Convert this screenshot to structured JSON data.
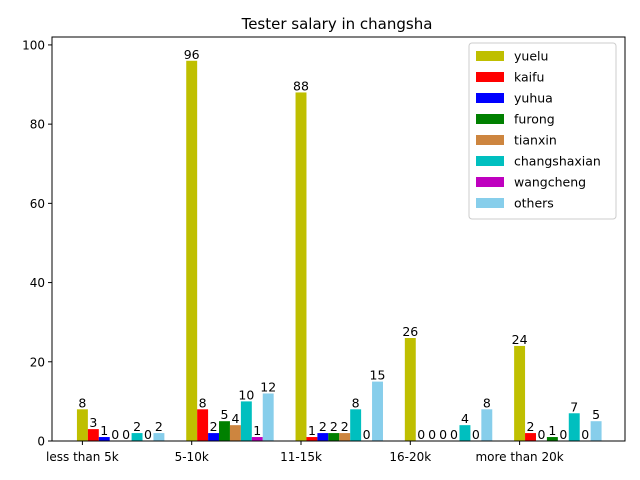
{
  "chart_data": {
    "type": "bar",
    "title": "Tester salary in changsha",
    "xlabel": "",
    "ylabel": "",
    "categories": [
      "less than 5k",
      "5-10k",
      "11-15k",
      "16-20k",
      "more than 20k"
    ],
    "ylim": [
      0,
      102
    ],
    "yticks": [
      0,
      20,
      40,
      60,
      80,
      100
    ],
    "grid": false,
    "legend_position": "top-right",
    "series": [
      {
        "name": "yuelu",
        "color": "#bfbf00",
        "values": [
          8,
          96,
          88,
          26,
          24
        ]
      },
      {
        "name": "kaifu",
        "color": "#ff0000",
        "values": [
          3,
          8,
          1,
          0,
          2
        ]
      },
      {
        "name": "yuhua",
        "color": "#0000ff",
        "values": [
          1,
          2,
          2,
          0,
          0
        ]
      },
      {
        "name": "furong",
        "color": "#008000",
        "values": [
          0,
          5,
          2,
          0,
          1
        ]
      },
      {
        "name": "tianxin",
        "color": "#cd853f",
        "values": [
          0,
          4,
          2,
          0,
          0
        ]
      },
      {
        "name": "changshaxian",
        "color": "#00bfbf",
        "values": [
          2,
          10,
          8,
          4,
          7
        ]
      },
      {
        "name": "wangcheng",
        "color": "#bf00bf",
        "values": [
          0,
          1,
          0,
          0,
          0
        ]
      },
      {
        "name": "others",
        "color": "#87ceeb",
        "values": [
          2,
          12,
          15,
          8,
          5
        ]
      }
    ]
  }
}
